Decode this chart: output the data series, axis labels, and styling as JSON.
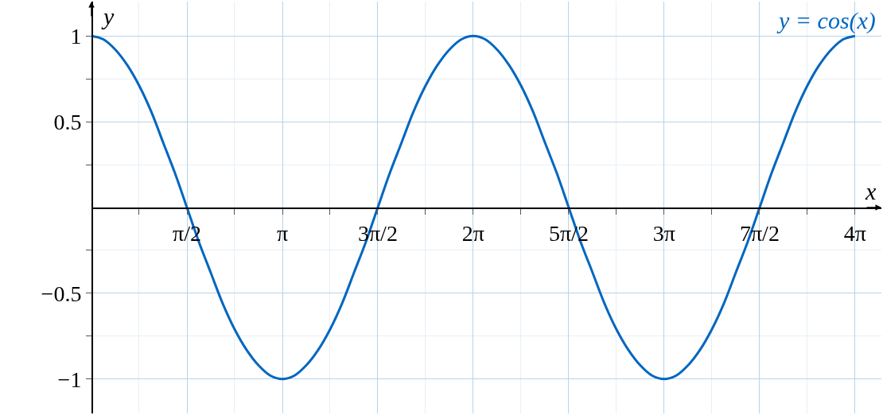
{
  "chart_data": {
    "type": "line",
    "xlabel": "x",
    "ylabel": "y",
    "xlim": [
      0,
      13.0
    ],
    "ylim": [
      -1.2,
      1.2
    ],
    "xticks": [
      {
        "value": 0.785,
        "label": null
      },
      {
        "value": 1.571,
        "label": "π/2"
      },
      {
        "value": 2.356,
        "label": null
      },
      {
        "value": 3.142,
        "label": "π"
      },
      {
        "value": 3.927,
        "label": null
      },
      {
        "value": 4.712,
        "label": "3π/2"
      },
      {
        "value": 5.498,
        "label": null
      },
      {
        "value": 6.283,
        "label": "2π"
      },
      {
        "value": 7.069,
        "label": null
      },
      {
        "value": 7.854,
        "label": "5π/2"
      },
      {
        "value": 8.639,
        "label": null
      },
      {
        "value": 9.425,
        "label": "3π"
      },
      {
        "value": 10.21,
        "label": null
      },
      {
        "value": 10.996,
        "label": "7π/2"
      },
      {
        "value": 11.781,
        "label": null
      },
      {
        "value": 12.566,
        "label": "4π"
      }
    ],
    "yticks": [
      {
        "value": -1,
        "label": "−1"
      },
      {
        "value": -0.75,
        "label": null
      },
      {
        "value": -0.5,
        "label": "−0.5"
      },
      {
        "value": -0.25,
        "label": null
      },
      {
        "value": 0.25,
        "label": null
      },
      0.5,
      {
        "value": 0.75,
        "label": null
      },
      1
    ],
    "grid": true,
    "line_style": "solid",
    "series": [
      {
        "name": "y = cos(x)",
        "color": "#0066c0",
        "x": [
          0,
          0.196,
          0.393,
          0.589,
          0.785,
          0.982,
          1.178,
          1.374,
          1.571,
          1.767,
          1.963,
          2.16,
          2.356,
          2.553,
          2.749,
          2.945,
          3.142,
          3.338,
          3.534,
          3.731,
          3.927,
          4.123,
          4.32,
          4.516,
          4.712,
          4.909,
          5.105,
          5.301,
          5.498,
          5.694,
          5.89,
          6.087,
          6.283,
          6.48,
          6.676,
          6.872,
          7.069,
          7.265,
          7.461,
          7.658,
          7.854,
          8.05,
          8.247,
          8.443,
          8.639,
          8.836,
          9.032,
          9.228,
          9.425,
          9.621,
          9.817,
          10.014,
          10.21,
          10.407,
          10.603,
          10.799,
          10.996,
          11.192,
          11.388,
          11.585,
          11.781,
          11.977,
          12.174,
          12.37,
          12.566
        ],
        "values": [
          1,
          0.98,
          0.92,
          0.83,
          0.71,
          0.56,
          0.38,
          0.2,
          0,
          -0.2,
          -0.38,
          -0.56,
          -0.71,
          -0.83,
          -0.92,
          -0.98,
          -1,
          -0.98,
          -0.92,
          -0.83,
          -0.71,
          -0.56,
          -0.38,
          -0.2,
          0,
          0.2,
          0.38,
          0.56,
          0.71,
          0.83,
          0.92,
          0.98,
          1,
          0.98,
          0.92,
          0.83,
          0.71,
          0.56,
          0.38,
          0.2,
          0,
          -0.2,
          -0.38,
          -0.56,
          -0.71,
          -0.83,
          -0.92,
          -0.98,
          -1,
          -0.98,
          -0.92,
          -0.83,
          -0.71,
          -0.56,
          -0.38,
          -0.2,
          0,
          0.2,
          0.38,
          0.56,
          0.71,
          0.83,
          0.92,
          0.98,
          1
        ]
      }
    ]
  }
}
